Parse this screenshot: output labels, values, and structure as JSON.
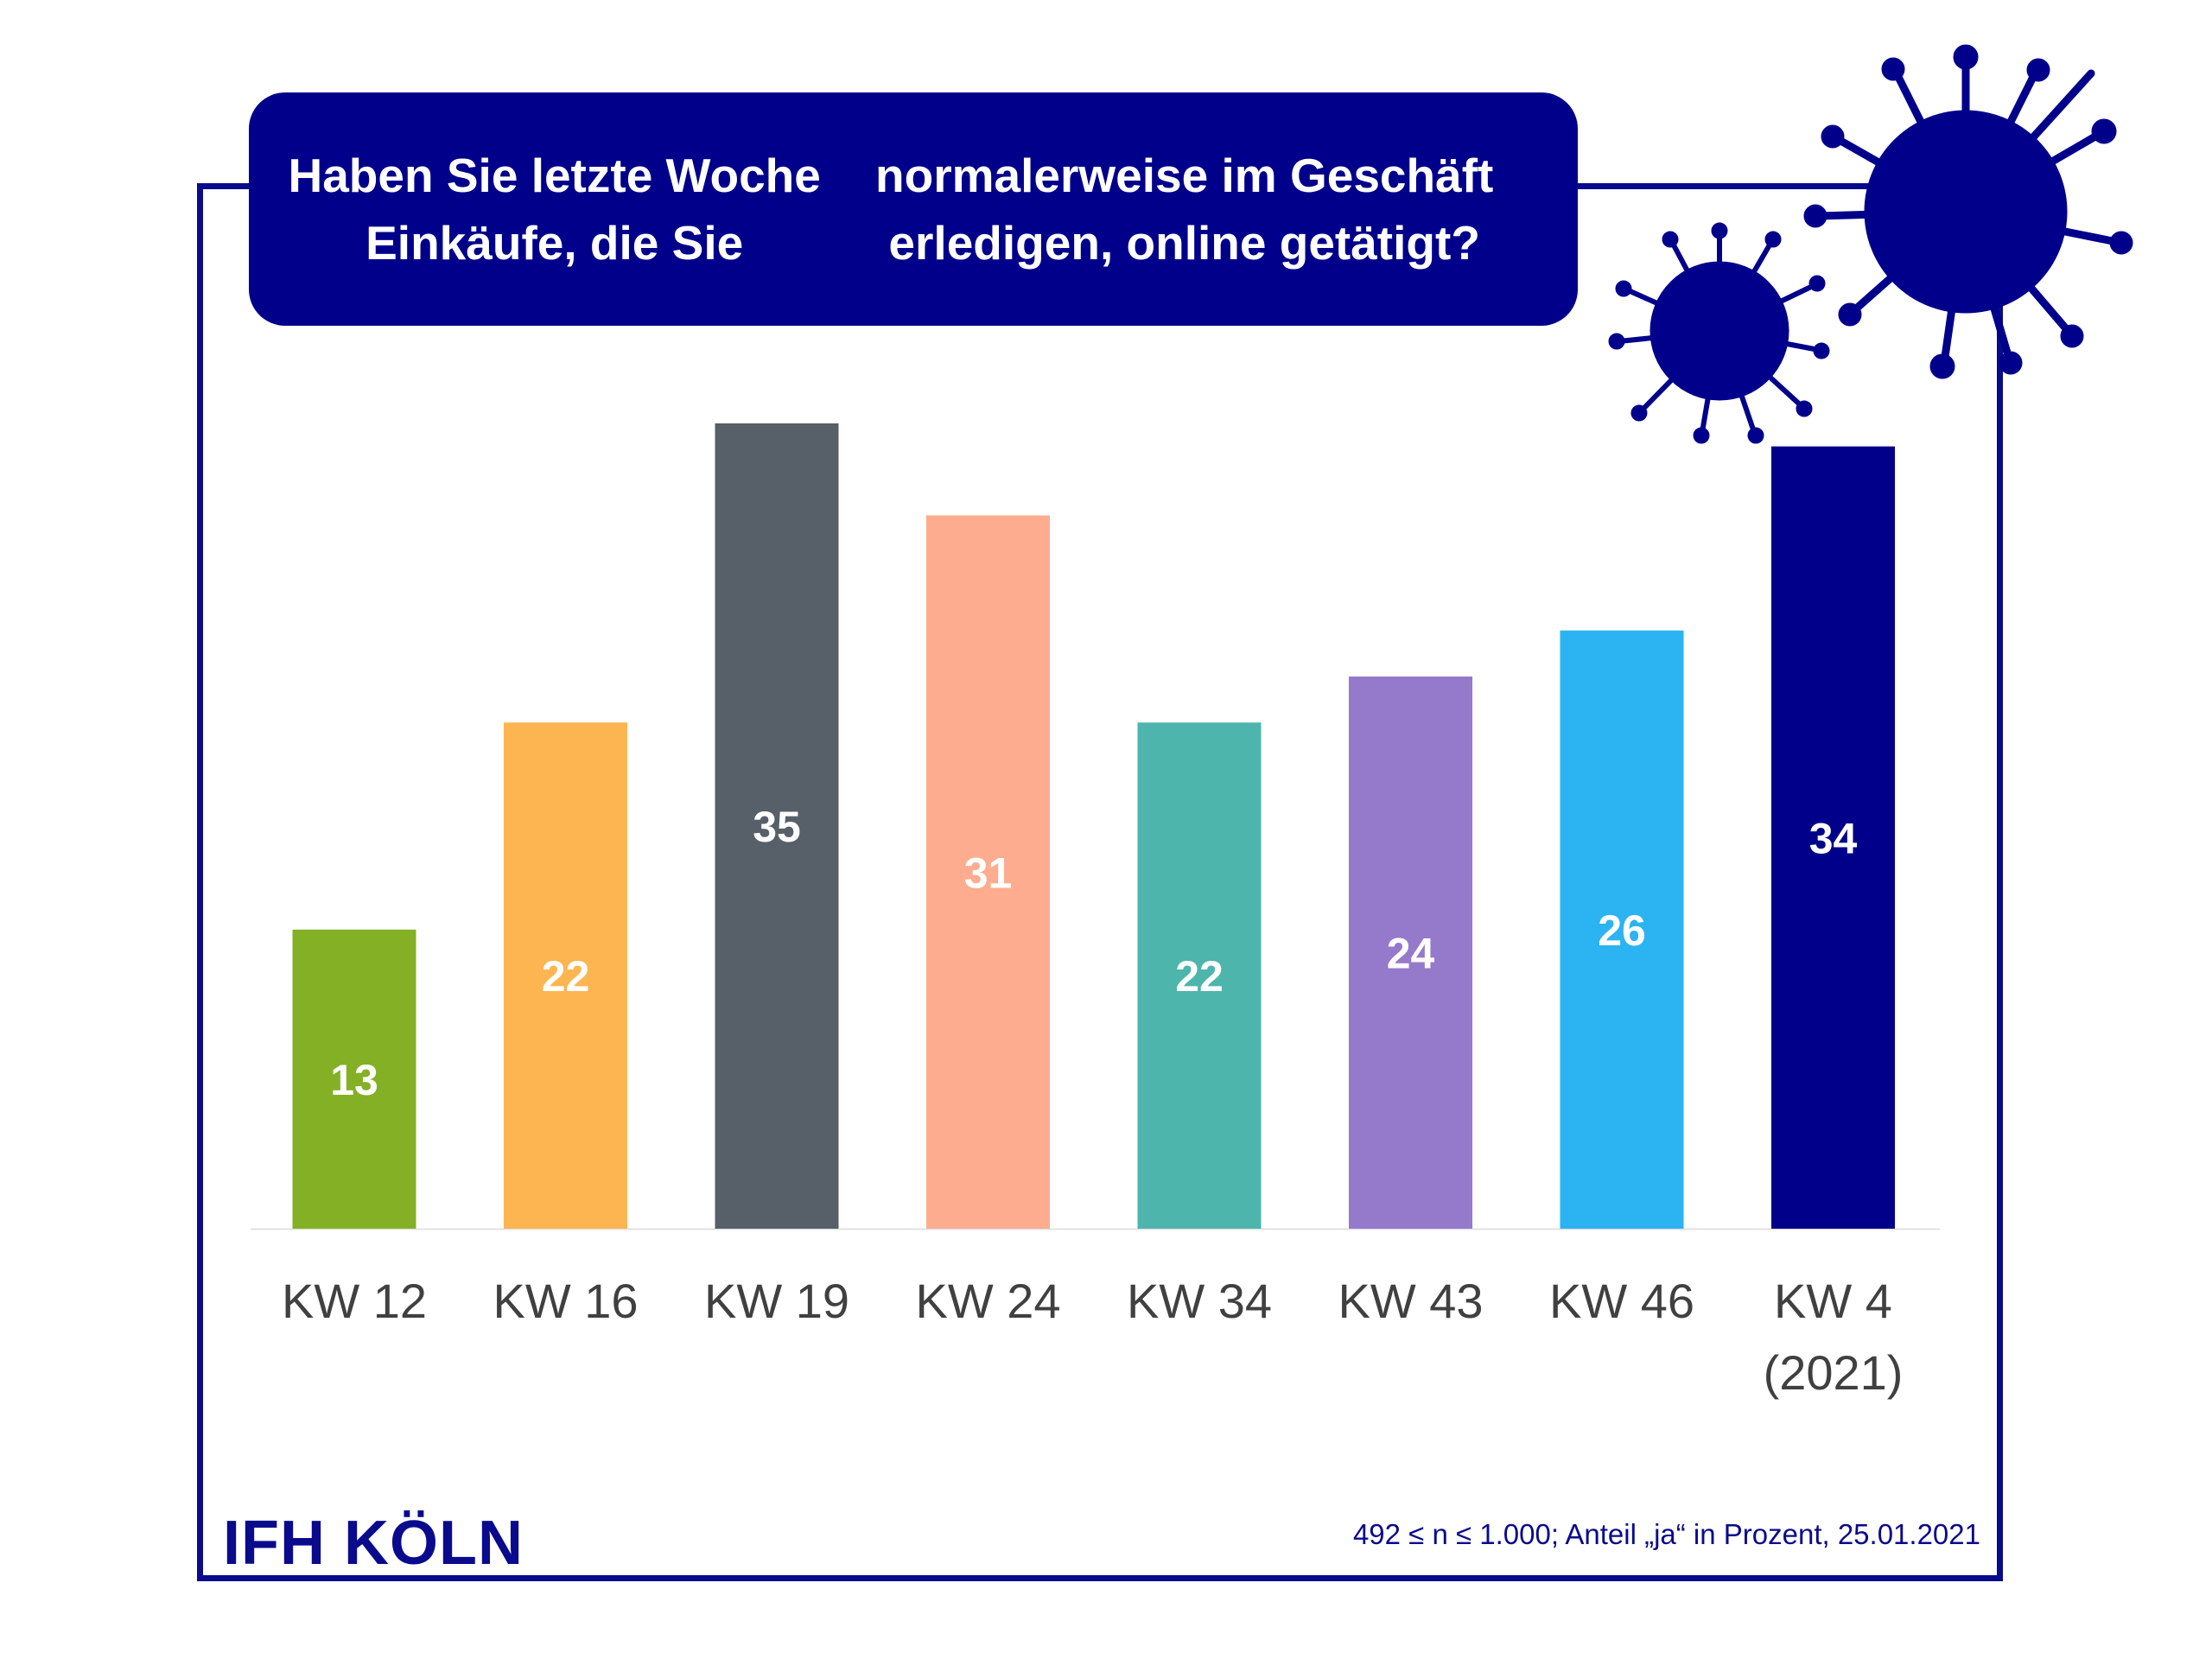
{
  "chart_data": {
    "type": "bar",
    "title_lines": [
      "Haben Sie letzte Woche Einkäufe, die Sie",
      "normalerweise im Geschäft erledigen, online getätigt?"
    ],
    "categories": [
      [
        "KW 12"
      ],
      [
        "KW 16"
      ],
      [
        "KW 19"
      ],
      [
        "KW 24"
      ],
      [
        "KW 34"
      ],
      [
        "KW 43"
      ],
      [
        "KW 46"
      ],
      [
        "KW 4",
        "(2021)"
      ]
    ],
    "values": [
      13,
      22,
      35,
      31,
      22,
      24,
      26,
      34
    ],
    "colors": [
      "#84b026",
      "#fdb551",
      "#575f69",
      "#fdac8f",
      "#4db5ac",
      "#9579cb",
      "#2bb4f1",
      "#00008b"
    ],
    "ylim": [
      0,
      35
    ],
    "grid": false,
    "legend": "none"
  },
  "logo": "IFH KÖLN",
  "note": "492 ≤ n ≤ 1.000; Anteil „ja“ in Prozent, 25.01.2021"
}
